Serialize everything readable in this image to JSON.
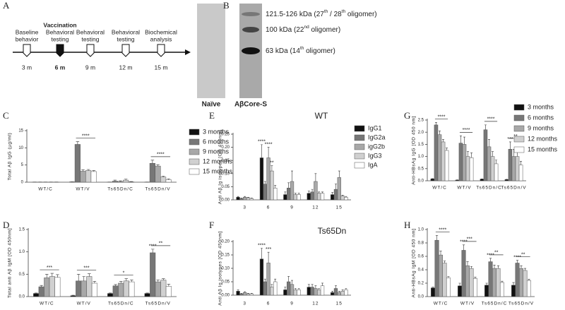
{
  "panels": {
    "labels": [
      "A",
      "B",
      "C",
      "D",
      "E",
      "F",
      "G",
      "H"
    ]
  },
  "timeline": {
    "events": [
      {
        "lines": [
          "Baseline",
          "behavior"
        ],
        "time": "3 m"
      },
      {
        "lines": [
          "Vaccination",
          "Behavioral",
          "testing"
        ],
        "time": "6 m"
      },
      {
        "lines": [
          "Behavioral",
          "testing"
        ],
        "time": "9 m"
      },
      {
        "lines": [
          "Behavioral",
          "testing"
        ],
        "time": "12 m"
      },
      {
        "lines": [
          "Biochemical",
          "analysis"
        ],
        "time": "15 m"
      }
    ]
  },
  "blot": {
    "lanes": [
      "Naïve",
      "AβCore-S"
    ],
    "bands": [
      [
        "121.5-126 kDa (27",
        "th",
        " / 28",
        "th",
        " oligomer)"
      ],
      [
        "100 kDa (22",
        "nd",
        " oligomer)"
      ],
      [
        "63 kDa (14",
        "th",
        " oligomer)"
      ]
    ]
  },
  "chart_data": [
    {
      "type": "bar",
      "ylabel": "Total Aβ IgG (µg/ml)",
      "categories": [
        "WT/C",
        "WT/V",
        "Ts65Dn/C",
        "Ts65Dn/V"
      ],
      "ylim": [
        0,
        15
      ],
      "yticks": [
        0,
        5,
        10,
        15
      ],
      "brackets": [
        null,
        "****",
        null,
        "****"
      ],
      "series": [
        {
          "name": "3 months",
          "color": "#111111",
          "values": [
            0.05,
            0.1,
            0.05,
            0.05
          ],
          "errors": [
            0,
            0,
            0,
            0
          ]
        },
        {
          "name": "6 months",
          "color": "#777777",
          "values": [
            0.05,
            11.0,
            0.3,
            5.5
          ],
          "errors": [
            0,
            0.8,
            0.3,
            0.9
          ]
        },
        {
          "name": "9 months",
          "color": "#a8a8a8",
          "values": [
            0.05,
            3.2,
            0.2,
            4.7
          ],
          "errors": [
            0,
            0.4,
            0.2,
            0.4
          ]
        },
        {
          "name": "12 months",
          "color": "#d0d0d0",
          "values": [
            0.05,
            3.4,
            0.6,
            1.5
          ],
          "errors": [
            0,
            0.3,
            0.3,
            0.3
          ]
        },
        {
          "name": "15 months",
          "color": "#ffffff",
          "values": [
            0.05,
            3.1,
            0.1,
            0.7
          ],
          "errors": [
            0,
            0.3,
            0.1,
            0.3
          ]
        }
      ]
    },
    {
      "type": "bar",
      "ylabel": "Total anti Aβ IgM [OD 450nm]",
      "categories": [
        "WT/C",
        "WT/V",
        "Ts65Dn/C",
        "Ts65Dn/V"
      ],
      "ylim": [
        0,
        1.5
      ],
      "yticks": [
        {
          "value": 0,
          "label": "0.0"
        },
        0.5,
        {
          "value": 1,
          "label": "1.0"
        },
        1.5
      ],
      "brackets": [
        "***",
        "***",
        "*",
        "**"
      ],
      "series": [
        {
          "color": "#111111",
          "values": [
            0.07,
            0.02,
            0.07,
            0.07
          ],
          "errors": [
            0.01,
            0.01,
            0.01,
            0.01
          ]
        },
        {
          "color": "#777777",
          "values": [
            0.22,
            0.35,
            0.24,
            0.98
          ],
          "errors": [
            0.03,
            0.15,
            0.03,
            0.08
          ],
          "significance": [
            null,
            null,
            null,
            "****"
          ]
        },
        {
          "color": "#a8a8a8",
          "values": [
            0.42,
            0.35,
            0.3,
            0.33
          ],
          "errors": [
            0.08,
            0.1,
            0.04,
            0.04
          ]
        },
        {
          "color": "#d0d0d0",
          "values": [
            0.45,
            0.45,
            0.35,
            0.37
          ],
          "errors": [
            0.07,
            0.06,
            0.05,
            0.03
          ]
        },
        {
          "color": "#ffffff",
          "values": [
            0.43,
            0.3,
            0.33,
            0.23
          ],
          "errors": [
            0.06,
            0.04,
            0.04,
            0.05
          ]
        }
      ]
    },
    {
      "type": "bar",
      "ylabel": "Anti Aβ Ig isotypes [OD 450nm]",
      "label": "WT",
      "categories": [
        "3",
        "6",
        "9",
        "12",
        "15"
      ],
      "ylim": [
        0,
        0.25
      ],
      "yticks": [
        {
          "value": 0,
          "label": "0.00"
        },
        0.05,
        {
          "value": 0.1,
          "label": "0.10"
        },
        0.15,
        {
          "value": 0.2,
          "label": "0.20"
        },
        0.25
      ],
      "series": [
        {
          "name": "IgG1",
          "color": "#111111",
          "values": [
            0.01,
            0.16,
            0.02,
            0.025,
            0.02
          ],
          "errors": [
            0.003,
            0.05,
            0.01,
            0.008,
            0.008
          ],
          "significance": [
            null,
            "****",
            null,
            null,
            null
          ]
        },
        {
          "name": "IgG2a",
          "color": "#777777",
          "values": [
            0.005,
            0.06,
            0.045,
            0.03,
            0.04
          ],
          "errors": [
            0.002,
            0.01,
            0.02,
            0.01,
            0.02
          ]
        },
        {
          "name": "igG2b",
          "color": "#a8a8a8",
          "values": [
            0.01,
            0.16,
            0.07,
            0.07,
            0.085
          ],
          "errors": [
            0.003,
            0.04,
            0.04,
            0.03,
            0.025
          ],
          "significance": [
            null,
            "****",
            null,
            null,
            null
          ]
        },
        {
          "name": "IgG3",
          "color": "#d0d0d0",
          "values": [
            0.008,
            0.11,
            0.02,
            0.025,
            0.015
          ],
          "errors": [
            0.002,
            0.02,
            0.005,
            0.005,
            0.003
          ],
          "significance": [
            null,
            "**",
            null,
            null,
            null
          ]
        },
        {
          "name": "IgA",
          "color": "#ffffff",
          "values": [
            0.005,
            0.045,
            0.02,
            0.025,
            0.01
          ],
          "errors": [
            0.002,
            0.01,
            0.005,
            0.005,
            0.003
          ]
        }
      ]
    },
    {
      "type": "bar",
      "ylabel": "Anti Aβ Ig isotypes [OD 450nm]",
      "label": "Ts65Dn",
      "categories": [
        "3",
        "6",
        "9",
        "12",
        "15"
      ],
      "ylim": [
        0,
        0.2
      ],
      "yticks": [
        {
          "value": 0,
          "label": "0.00"
        },
        0.05,
        {
          "value": 0.1,
          "label": "0.10"
        },
        0.15,
        {
          "value": 0.2,
          "label": "0.20"
        }
      ],
      "series": [
        {
          "color": "#111111",
          "values": [
            0.015,
            0.135,
            0.02,
            0.03,
            0.01
          ],
          "errors": [
            0.005,
            0.04,
            0.01,
            0.01,
            0.005
          ],
          "significance": [
            null,
            "****",
            null,
            null,
            null
          ]
        },
        {
          "color": "#777777",
          "values": [
            0.005,
            0.05,
            0.05,
            0.03,
            0.025
          ],
          "errors": [
            0.002,
            0.01,
            0.02,
            0.01,
            0.01
          ]
        },
        {
          "color": "#a8a8a8",
          "values": [
            0.01,
            0.12,
            0.04,
            0.025,
            0.01
          ],
          "errors": [
            0.003,
            0.04,
            0.015,
            0.01,
            0.005
          ],
          "significance": [
            null,
            "***",
            null,
            null,
            null
          ]
        },
        {
          "color": "#d0d0d0",
          "values": [
            0.005,
            0.03,
            0.02,
            0.02,
            0.015
          ],
          "errors": [
            0.002,
            0.01,
            0.005,
            0.005,
            0.005
          ]
        },
        {
          "color": "#ffffff",
          "values": [
            0.005,
            0.05,
            0.02,
            0.035,
            0.02
          ],
          "errors": [
            0.002,
            0.01,
            0.005,
            0.01,
            0.005
          ]
        }
      ]
    },
    {
      "type": "bar",
      "ylabel": "Anti-HBsAg IgG [OD 450 nm]",
      "categories": [
        "WT/C",
        "WT/V",
        "Ts65Dn/C",
        "Ts65Dn/V"
      ],
      "ylim": [
        0,
        2.5
      ],
      "yticks": [
        {
          "value": 0,
          "label": "0.0"
        },
        0.5,
        {
          "value": 1,
          "label": "1.0"
        },
        1.5,
        {
          "value": 2,
          "label": "2.0"
        },
        2.5
      ],
      "brackets": [
        "****",
        "****",
        "****",
        "**"
      ],
      "series": [
        {
          "name": "3 months",
          "color": "#111111",
          "values": [
            0.08,
            0.03,
            0.07,
            0.05
          ],
          "errors": [
            0.01,
            0.01,
            0.01,
            0.01
          ]
        },
        {
          "name": "6 months",
          "color": "#777777",
          "values": [
            2.3,
            1.55,
            2.1,
            1.3
          ],
          "errors": [
            0.1,
            0.3,
            0.2,
            0.3
          ],
          "significance": [
            null,
            null,
            null,
            "***"
          ]
        },
        {
          "name": "9 months",
          "color": "#a8a8a8",
          "values": [
            1.9,
            1.5,
            1.4,
            1.0
          ],
          "errors": [
            0.15,
            0.3,
            0.3,
            0.3
          ]
        },
        {
          "name": "12 months",
          "color": "#d0d0d0",
          "values": [
            1.6,
            1.0,
            1.0,
            1.0
          ],
          "errors": [
            0.1,
            0.2,
            0.2,
            0.2
          ]
        },
        {
          "name": "15 months",
          "color": "#ffffff",
          "values": [
            1.25,
            0.95,
            0.7,
            0.65
          ],
          "errors": [
            0.1,
            0.2,
            0.15,
            0.15
          ]
        }
      ]
    },
    {
      "type": "bar",
      "ylabel": "Anti-HBsAg IgM [OD 450 nm]",
      "categories": [
        "WT/C",
        "WT/V",
        "Ts65Dn/C",
        "Ts65Dn/V"
      ],
      "ylim": [
        0,
        1
      ],
      "yticks": [
        {
          "value": 0,
          "label": "0.0"
        },
        0.2,
        0.4,
        0.6,
        0.8,
        {
          "value": 1,
          "label": "1.0"
        }
      ],
      "brackets": [
        "****",
        "***",
        "**",
        "**"
      ],
      "series": [
        {
          "color": "#111111",
          "values": [
            0.13,
            0.16,
            0.17,
            0.17
          ],
          "errors": [
            0.01,
            0.04,
            0.03,
            0.04
          ]
        },
        {
          "color": "#777777",
          "values": [
            0.84,
            0.69,
            0.52,
            0.5
          ],
          "errors": [
            0.07,
            0.08,
            0.05,
            0.04
          ],
          "significance": [
            null,
            "****",
            "****",
            "****"
          ]
        },
        {
          "color": "#a8a8a8",
          "values": [
            0.62,
            0.46,
            0.42,
            0.42
          ],
          "errors": [
            0.06,
            0.06,
            0.05,
            0.04
          ]
        },
        {
          "color": "#d0d0d0",
          "values": [
            0.5,
            0.42,
            0.42,
            0.39
          ],
          "errors": [
            0.03,
            0.03,
            0.04,
            0.03
          ]
        },
        {
          "color": "#ffffff",
          "values": [
            0.28,
            0.27,
            0.21,
            0.24
          ],
          "errors": [
            0.02,
            0.02,
            0.02,
            0.02
          ]
        }
      ]
    }
  ]
}
